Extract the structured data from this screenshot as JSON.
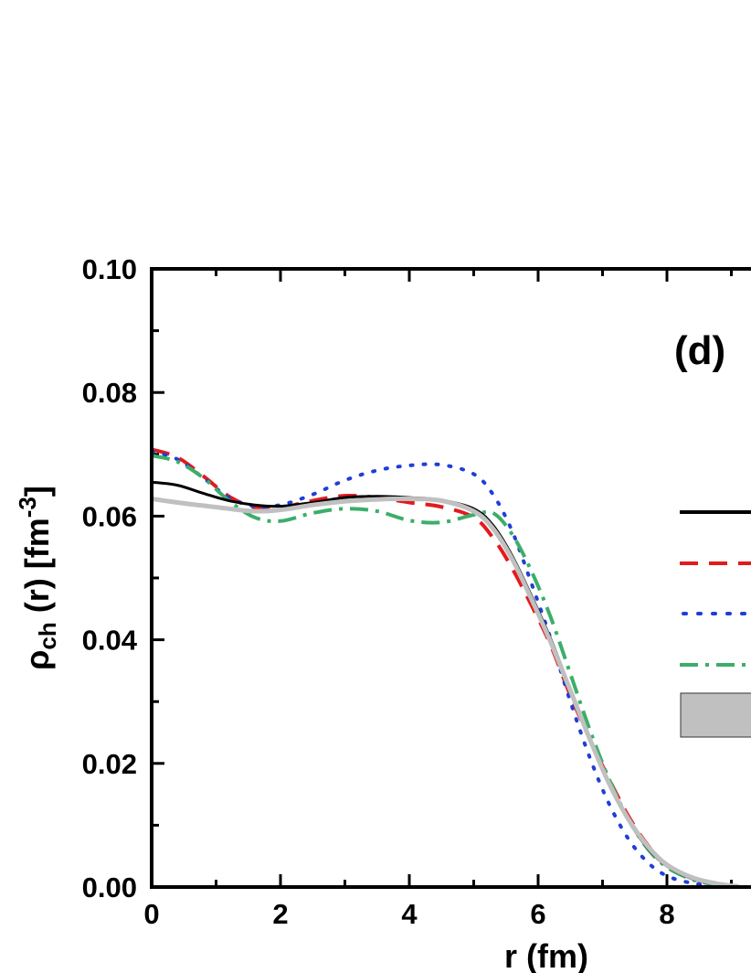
{
  "chart_data": {
    "type": "line",
    "panel_label": "(d)",
    "xlabel": "r (fm)",
    "ylabel_parts": {
      "rho": "ρ",
      "sub": "ch",
      "mid": " (r) [fm",
      "sup": "-3",
      "end": "]"
    },
    "xlim": [
      0,
      9.1
    ],
    "ylim": [
      0,
      0.1
    ],
    "x_ticks": [
      "0",
      "2",
      "4",
      "6",
      "8"
    ],
    "y_ticks": [
      "0.00",
      "0.02",
      "0.04",
      "0.06",
      "0.08",
      "0.10"
    ],
    "legend_placement": "right",
    "series": [
      {
        "style": "solid",
        "color": "#000000",
        "x": [
          0,
          0.4,
          0.8,
          1.2,
          1.6,
          2.0,
          2.5,
          3.0,
          3.5,
          4.0,
          4.5,
          5.0,
          5.3,
          5.6,
          5.9,
          6.2,
          6.5,
          6.8,
          7.1,
          7.4,
          7.7,
          8.0,
          8.4,
          8.8,
          9.1
        ],
        "y": [
          0.0655,
          0.065,
          0.0637,
          0.0625,
          0.0618,
          0.0616,
          0.0622,
          0.063,
          0.0632,
          0.063,
          0.0626,
          0.0612,
          0.0585,
          0.0535,
          0.047,
          0.04,
          0.032,
          0.024,
          0.0168,
          0.0108,
          0.0063,
          0.0034,
          0.0013,
          0.0004,
          0.0001
        ]
      },
      {
        "style": "dashed",
        "color": "#e31a1c",
        "x": [
          0,
          0.4,
          0.8,
          1.2,
          1.6,
          2.0,
          2.5,
          3.0,
          3.5,
          4.0,
          4.5,
          5.0,
          5.3,
          5.6,
          5.9,
          6.2,
          6.5,
          6.8,
          7.1,
          7.4,
          7.7,
          8.0,
          8.4,
          8.8,
          9.1
        ],
        "y": [
          0.0708,
          0.0695,
          0.0665,
          0.0632,
          0.0614,
          0.0614,
          0.0625,
          0.0633,
          0.063,
          0.0622,
          0.0615,
          0.0598,
          0.0565,
          0.0515,
          0.0455,
          0.039,
          0.031,
          0.024,
          0.0175,
          0.0115,
          0.0068,
          0.0036,
          0.0014,
          0.0004,
          0.0001
        ]
      },
      {
        "style": "dotted",
        "color": "#1f3fd6",
        "x": [
          0,
          0.4,
          0.8,
          1.2,
          1.6,
          2.0,
          2.5,
          3.0,
          3.5,
          4.0,
          4.5,
          5.0,
          5.3,
          5.6,
          5.9,
          6.2,
          6.5,
          6.8,
          7.1,
          7.4,
          7.7,
          8.0,
          8.4,
          8.8,
          9.1
        ],
        "y": [
          0.0705,
          0.0692,
          0.0662,
          0.063,
          0.0616,
          0.0618,
          0.0635,
          0.0658,
          0.0674,
          0.0682,
          0.0683,
          0.0668,
          0.0635,
          0.0575,
          0.049,
          0.04,
          0.03,
          0.021,
          0.0135,
          0.0078,
          0.004,
          0.0018,
          0.0006,
          0.0002,
          0.0001
        ]
      },
      {
        "style": "dashdot",
        "color": "#3cae6a",
        "x": [
          0,
          0.4,
          0.8,
          1.2,
          1.6,
          2.0,
          2.5,
          3.0,
          3.5,
          4.0,
          4.5,
          5.0,
          5.3,
          5.6,
          5.9,
          6.2,
          6.5,
          6.8,
          7.1,
          7.4,
          7.7,
          8.0,
          8.4,
          8.8,
          9.1
        ],
        "y": [
          0.0698,
          0.0688,
          0.0662,
          0.0625,
          0.0598,
          0.0592,
          0.0605,
          0.0612,
          0.0608,
          0.0593,
          0.059,
          0.0602,
          0.0605,
          0.057,
          0.051,
          0.0435,
          0.0345,
          0.0255,
          0.0175,
          0.011,
          0.0062,
          0.0032,
          0.0012,
          0.0003,
          0.0001
        ]
      },
      {
        "style": "band",
        "color": "#c0c0c0",
        "x": [
          0,
          0.4,
          0.8,
          1.2,
          1.6,
          2.0,
          2.5,
          3.0,
          3.5,
          4.0,
          4.5,
          5.0,
          5.3,
          5.6,
          5.9,
          6.2,
          6.5,
          6.8,
          7.1,
          7.4,
          7.7,
          8.0,
          8.4,
          8.8,
          9.1
        ],
        "y": [
          0.0628,
          0.0622,
          0.0617,
          0.0612,
          0.0608,
          0.061,
          0.0618,
          0.0624,
          0.0627,
          0.0628,
          0.0625,
          0.0608,
          0.058,
          0.053,
          0.0465,
          0.0395,
          0.0318,
          0.024,
          0.0168,
          0.011,
          0.0066,
          0.0036,
          0.0015,
          0.0005,
          0.0001
        ]
      }
    ]
  }
}
